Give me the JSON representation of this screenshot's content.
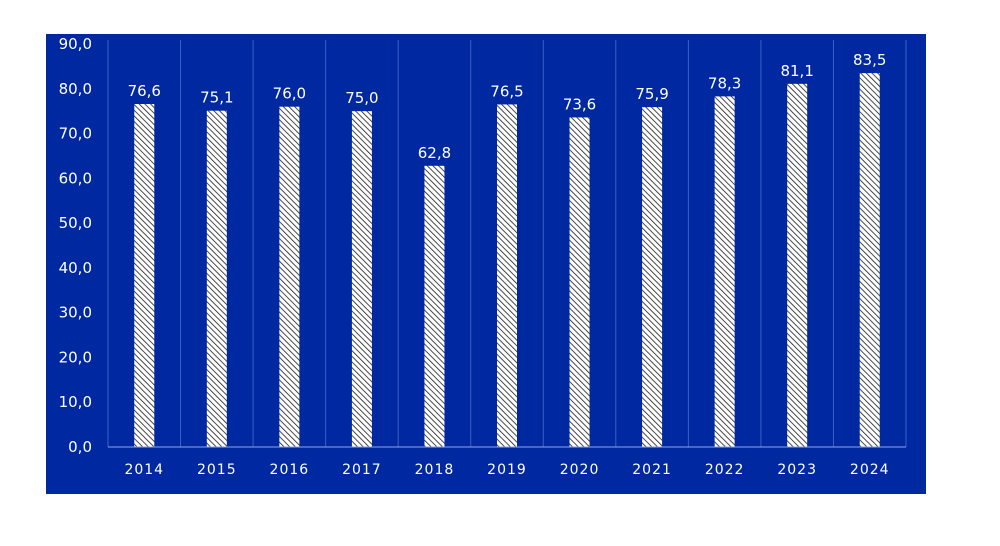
{
  "colors": {
    "background": "#0028A0",
    "gridline": "#3E5FC6",
    "axis_line": "#8FA6E6",
    "bar_fill": "#ffffff",
    "bar_hatch": "#1a1a1a",
    "text": "#ffffff"
  },
  "chart_data": {
    "type": "bar",
    "categories": [
      "2014",
      "2015",
      "2016",
      "2017",
      "2018",
      "2019",
      "2020",
      "2021",
      "2022",
      "2023",
      "2024"
    ],
    "values": [
      76.6,
      75.1,
      76.0,
      75.0,
      62.8,
      76.5,
      73.6,
      75.9,
      78.3,
      81.1,
      83.5
    ],
    "data_labels": [
      "76,6",
      "75,1",
      "76,0",
      "75,0",
      "62,8",
      "76,5",
      "73,6",
      "75,9",
      "78,3",
      "81,1",
      "83,5"
    ],
    "y_ticks": [
      0,
      10,
      20,
      30,
      40,
      50,
      60,
      70,
      80,
      90
    ],
    "y_tick_labels": [
      "0,0",
      "10,0",
      "20,0",
      "30,0",
      "40,0",
      "50,0",
      "60,0",
      "70,0",
      "80,0",
      "90,0"
    ],
    "ylim": [
      0,
      90
    ],
    "title": "",
    "xlabel": "",
    "ylabel": "",
    "vertical_category_separators": true,
    "bar_pattern": "diagonal-hatch",
    "legend": "none"
  }
}
